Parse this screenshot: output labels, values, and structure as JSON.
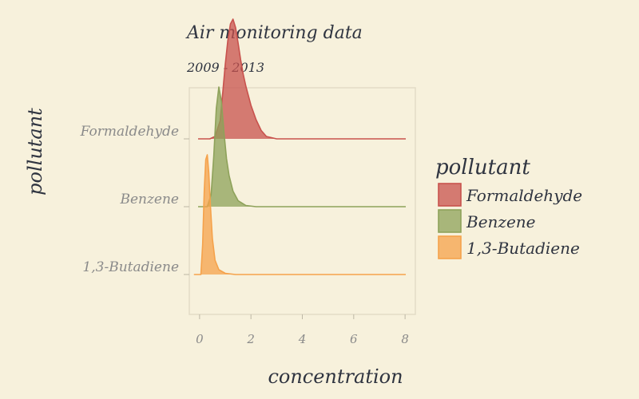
{
  "chart_data": {
    "type": "area",
    "title": "Air monitoring data",
    "subtitle": "2009 - 2013",
    "xlabel": "concentration",
    "ylabel": "pollutant",
    "xlim": [
      -0.4,
      8.4
    ],
    "x_ticks": [
      "0",
      "2",
      "4",
      "6",
      "8"
    ],
    "x_tick_values": [
      0,
      2,
      4,
      6,
      8
    ],
    "categories": [
      "Formaldehyde",
      "Benzene",
      "1,3-Butadiene"
    ],
    "legend": {
      "title": "pollutant",
      "position": "right",
      "entries": [
        "Formaldehyde",
        "Benzene",
        "1,3-Butadiene"
      ]
    },
    "grid": false,
    "colors": {
      "Formaldehyde": "#c8524d",
      "Benzene": "#8ea25a",
      "1,3-Butadiene": "#f5a24b",
      "background": "#f7f1dc"
    },
    "series": [
      {
        "name": "Formaldehyde",
        "x": [
          0.0,
          0.4,
          0.6,
          0.8,
          0.9,
          1.0,
          1.1,
          1.2,
          1.3,
          1.4,
          1.5,
          1.6,
          1.7,
          1.8,
          1.9,
          2.0,
          2.2,
          2.4,
          2.6,
          3.0,
          8.0
        ],
        "density": [
          0.0,
          0.0,
          0.02,
          0.15,
          0.38,
          0.62,
          0.82,
          0.96,
          1.0,
          0.93,
          0.8,
          0.66,
          0.54,
          0.44,
          0.36,
          0.28,
          0.16,
          0.07,
          0.02,
          0.0,
          0.0
        ]
      },
      {
        "name": "Benzene",
        "x": [
          0.0,
          0.3,
          0.45,
          0.55,
          0.65,
          0.75,
          0.85,
          0.95,
          1.05,
          1.15,
          1.3,
          1.5,
          1.8,
          2.2,
          8.0
        ],
        "density": [
          0.0,
          0.0,
          0.1,
          0.42,
          0.82,
          1.0,
          0.88,
          0.62,
          0.4,
          0.26,
          0.13,
          0.05,
          0.01,
          0.0,
          0.0
        ]
      },
      {
        "name": "1,3-Butadiene",
        "x": [
          -0.2,
          0.05,
          0.12,
          0.18,
          0.24,
          0.3,
          0.36,
          0.42,
          0.5,
          0.6,
          0.75,
          1.0,
          1.4,
          8.0
        ],
        "density": [
          0.0,
          0.0,
          0.25,
          0.7,
          0.96,
          1.0,
          0.85,
          0.58,
          0.3,
          0.12,
          0.04,
          0.01,
          0.0,
          0.0
        ]
      }
    ]
  }
}
